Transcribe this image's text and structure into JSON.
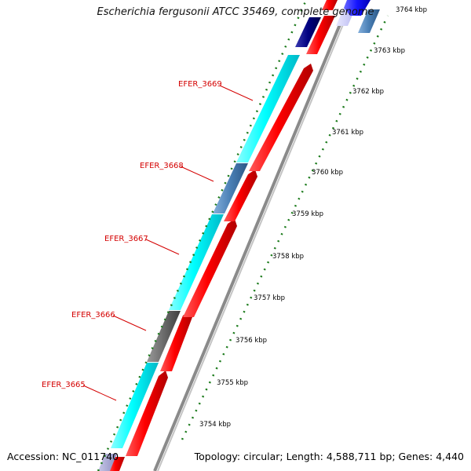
{
  "title": "Escherichia fergusonii ATCC 35469, complete genome",
  "footer": {
    "accession": "Accession: NC_011740",
    "topology": "Topology: circular; Length: 4,588,711 bp; Genes: 4,440"
  },
  "ticks": [
    {
      "label": "3754 kbp"
    },
    {
      "label": "3755 kbp"
    },
    {
      "label": "3756 kbp"
    },
    {
      "label": "3757 kbp"
    },
    {
      "label": "3758 kbp"
    },
    {
      "label": "3759 kbp"
    },
    {
      "label": "3760 kbp"
    },
    {
      "label": "3761 kbp"
    },
    {
      "label": "3762 kbp"
    },
    {
      "label": "3763 kbp"
    },
    {
      "label": "3764 kbp"
    }
  ],
  "gene_labels": [
    {
      "label": "EFER_3665"
    },
    {
      "label": "EFER_3666"
    },
    {
      "label": "EFER_3667"
    },
    {
      "label": "EFER_3668"
    },
    {
      "label": "EFER_3669"
    }
  ],
  "colors": {
    "cds_red": "#ff0000",
    "cds_cyan": "#00ffff",
    "cds_gray": "#6b6b6b",
    "cds_steelblue": "#4a7fb5",
    "cds_navy": "#000080",
    "cds_blue": "#1414ff",
    "label_red": "#d40000",
    "tick_green": "#1a7a1a",
    "backbone": "#8a8a8a"
  }
}
